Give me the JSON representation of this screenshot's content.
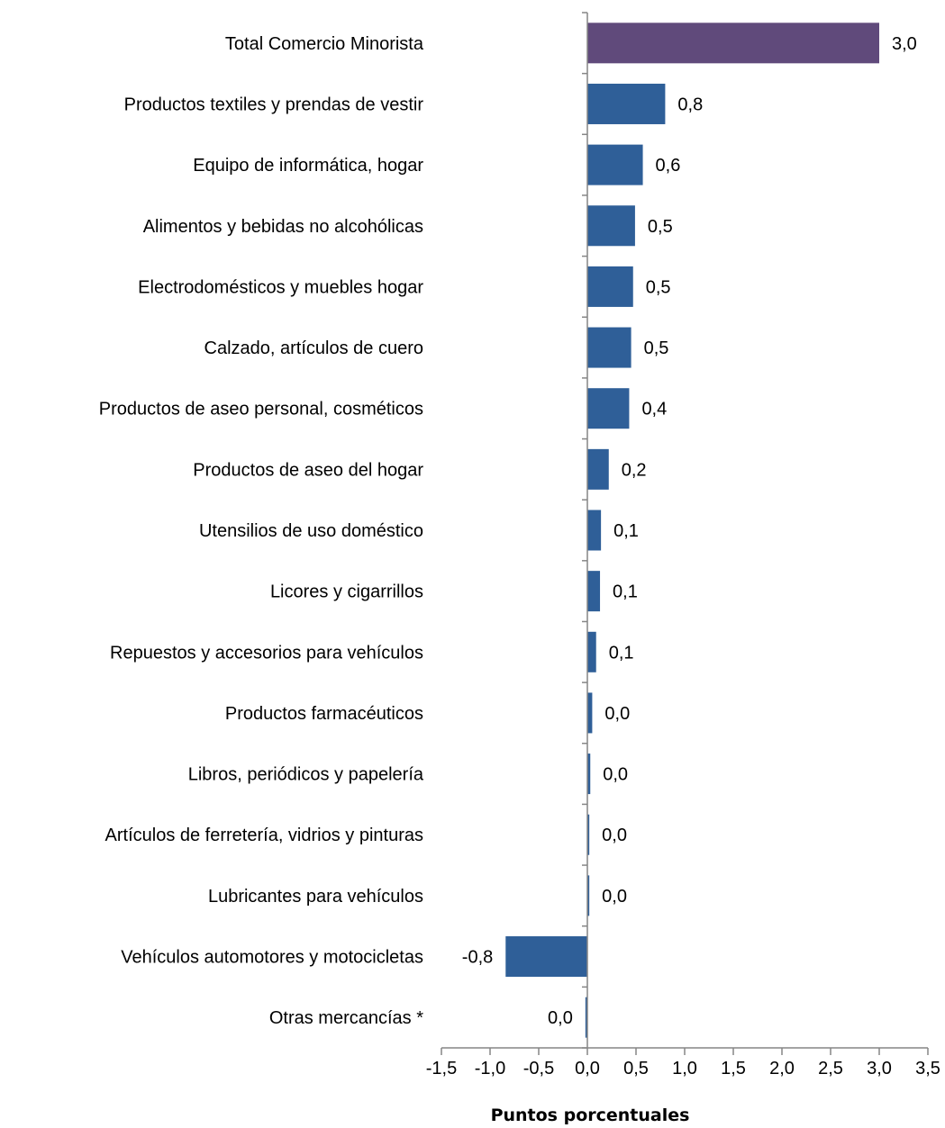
{
  "chart_data": {
    "type": "bar",
    "orientation": "horizontal",
    "title": "",
    "xlabel": "Puntos porcentuales",
    "ylabel": "",
    "xlim": [
      -1.5,
      3.5
    ],
    "x_ticks": [
      -1.5,
      -1.0,
      -0.5,
      0.0,
      0.5,
      1.0,
      1.5,
      2.0,
      2.5,
      3.0,
      3.5
    ],
    "x_tick_labels": [
      "-1,5",
      "-1,0",
      "-0,5",
      "0,0",
      "0,5",
      "1,0",
      "1,5",
      "2,0",
      "2,5",
      "3,0",
      "3,5"
    ],
    "grid": false,
    "legend": "none",
    "categories": [
      "Total Comercio Minorista",
      "Productos textiles y prendas de vestir",
      "Equipo de informática, hogar",
      "Alimentos y bebidas no alcohólicas",
      "Electrodomésticos y muebles hogar",
      "Calzado, artículos de cuero",
      "Productos de aseo personal, cosméticos",
      "Productos de aseo del  hogar",
      "Utensilios de uso doméstico",
      "Licores y cigarrillos",
      "Repuestos y accesorios para vehículos",
      "Productos farmacéuticos",
      "Libros, periódicos y papelería",
      "Artículos de ferretería, vidrios y pinturas",
      "Lubricantes para vehículos",
      "Vehículos automotores y motocicletas",
      "Otras mercancías   *"
    ],
    "values": [
      3.0,
      0.8,
      0.57,
      0.49,
      0.47,
      0.45,
      0.43,
      0.22,
      0.14,
      0.13,
      0.09,
      0.05,
      0.03,
      0.02,
      0.02,
      -0.84,
      -0.02
    ],
    "value_labels": [
      "3,0",
      "0,8",
      "0,6",
      "0,5",
      "0,5",
      "0,5",
      "0,4",
      "0,2",
      "0,1",
      "0,1",
      "0,1",
      "0,0",
      "0,0",
      "0,0",
      "0,0",
      "-0,8",
      "0,0"
    ],
    "colors": {
      "highlight": "#604a7b",
      "bar": "#2f5f98",
      "axis": "#868686"
    }
  }
}
